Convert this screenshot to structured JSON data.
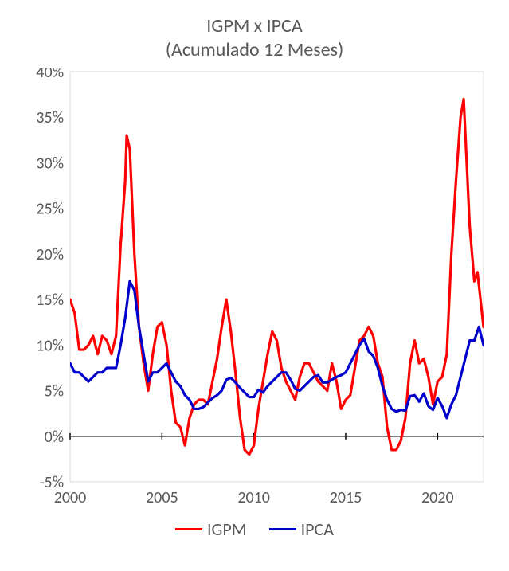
{
  "chart": {
    "type": "line",
    "title_line1": "IGPM x IPCA",
    "title_line2": "(Acumulado 12 Meses)",
    "title_fontsize": 24,
    "title_color": "#595959",
    "background_color": "#ffffff",
    "plot_border_color": "#d9d9d9",
    "plot_border_width": 1,
    "axis_text_color": "#595959",
    "axis_fontsize": 20,
    "x": {
      "min": 2000,
      "max": 2022.5,
      "ticks": [
        2000,
        2005,
        2010,
        2015,
        2020
      ],
      "tick_labels": [
        "2000",
        "2005",
        "2010",
        "2015",
        "2020"
      ],
      "tick_len": 8,
      "tick_color": "#000000",
      "tick_width": 1.5
    },
    "y": {
      "min": -5,
      "max": 40,
      "ticks": [
        -5,
        0,
        5,
        10,
        15,
        20,
        25,
        30,
        35,
        40
      ],
      "tick_labels": [
        "-5%",
        "0%",
        "5%",
        "10%",
        "15%",
        "20%",
        "25%",
        "30%",
        "35%",
        "40%"
      ],
      "zero_line_color": "#000000",
      "zero_line_width": 1.5
    },
    "legend": {
      "items": [
        "IGPM",
        "IPCA"
      ],
      "colors": [
        "#ff0000",
        "#0000cc"
      ],
      "fontsize": 22,
      "swatch_width": 34,
      "swatch_thickness": 3
    },
    "series": [
      {
        "name": "IGPM",
        "color": "#ff0000",
        "line_width": 3.2,
        "points": [
          [
            2000.0,
            15.0
          ],
          [
            2000.25,
            13.5
          ],
          [
            2000.5,
            9.5
          ],
          [
            2000.75,
            9.5
          ],
          [
            2001.0,
            10.0
          ],
          [
            2001.25,
            11.0
          ],
          [
            2001.5,
            9.0
          ],
          [
            2001.75,
            11.0
          ],
          [
            2002.0,
            10.5
          ],
          [
            2002.25,
            9.0
          ],
          [
            2002.5,
            11.0
          ],
          [
            2002.75,
            21.0
          ],
          [
            2003.0,
            28.0
          ],
          [
            2003.08,
            33.0
          ],
          [
            2003.25,
            31.5
          ],
          [
            2003.5,
            20.0
          ],
          [
            2003.75,
            12.0
          ],
          [
            2004.0,
            8.0
          ],
          [
            2004.25,
            5.0
          ],
          [
            2004.5,
            9.0
          ],
          [
            2004.75,
            12.0
          ],
          [
            2005.0,
            12.5
          ],
          [
            2005.25,
            10.0
          ],
          [
            2005.5,
            5.0
          ],
          [
            2005.75,
            1.5
          ],
          [
            2006.0,
            1.0
          ],
          [
            2006.25,
            -1.0
          ],
          [
            2006.5,
            2.0
          ],
          [
            2006.75,
            3.5
          ],
          [
            2007.0,
            4.0
          ],
          [
            2007.25,
            4.0
          ],
          [
            2007.5,
            3.5
          ],
          [
            2007.75,
            6.0
          ],
          [
            2008.0,
            8.5
          ],
          [
            2008.25,
            12.0
          ],
          [
            2008.5,
            15.0
          ],
          [
            2008.75,
            11.5
          ],
          [
            2009.0,
            7.0
          ],
          [
            2009.25,
            2.0
          ],
          [
            2009.5,
            -1.5
          ],
          [
            2009.75,
            -2.0
          ],
          [
            2010.0,
            -1.0
          ],
          [
            2010.25,
            3.0
          ],
          [
            2010.5,
            6.0
          ],
          [
            2010.75,
            9.0
          ],
          [
            2011.0,
            11.5
          ],
          [
            2011.25,
            10.5
          ],
          [
            2011.5,
            7.5
          ],
          [
            2011.75,
            6.0
          ],
          [
            2012.0,
            5.0
          ],
          [
            2012.25,
            4.0
          ],
          [
            2012.5,
            6.5
          ],
          [
            2012.75,
            8.0
          ],
          [
            2013.0,
            8.0
          ],
          [
            2013.25,
            7.0
          ],
          [
            2013.5,
            6.0
          ],
          [
            2013.75,
            5.5
          ],
          [
            2014.0,
            5.0
          ],
          [
            2014.25,
            8.0
          ],
          [
            2014.5,
            6.0
          ],
          [
            2014.75,
            3.0
          ],
          [
            2015.0,
            4.0
          ],
          [
            2015.25,
            4.5
          ],
          [
            2015.5,
            7.5
          ],
          [
            2015.75,
            10.5
          ],
          [
            2016.0,
            11.0
          ],
          [
            2016.25,
            12.0
          ],
          [
            2016.5,
            11.0
          ],
          [
            2016.75,
            8.0
          ],
          [
            2017.0,
            6.5
          ],
          [
            2017.25,
            1.0
          ],
          [
            2017.5,
            -1.5
          ],
          [
            2017.75,
            -1.5
          ],
          [
            2018.0,
            -0.5
          ],
          [
            2018.25,
            2.0
          ],
          [
            2018.5,
            8.0
          ],
          [
            2018.75,
            10.5
          ],
          [
            2019.0,
            8.0
          ],
          [
            2019.25,
            8.5
          ],
          [
            2019.5,
            6.5
          ],
          [
            2019.75,
            3.5
          ],
          [
            2020.0,
            6.0
          ],
          [
            2020.25,
            6.5
          ],
          [
            2020.5,
            9.0
          ],
          [
            2020.75,
            20.0
          ],
          [
            2021.0,
            28.0
          ],
          [
            2021.25,
            35.0
          ],
          [
            2021.42,
            37.0
          ],
          [
            2021.75,
            23.0
          ],
          [
            2022.0,
            17.0
          ],
          [
            2022.17,
            18.0
          ],
          [
            2022.5,
            12.0
          ]
        ]
      },
      {
        "name": "IPCA",
        "color": "#0000cc",
        "line_width": 3.2,
        "points": [
          [
            2000.0,
            8.0
          ],
          [
            2000.25,
            7.0
          ],
          [
            2000.5,
            7.0
          ],
          [
            2000.75,
            6.5
          ],
          [
            2001.0,
            6.0
          ],
          [
            2001.25,
            6.5
          ],
          [
            2001.5,
            7.0
          ],
          [
            2001.75,
            7.0
          ],
          [
            2002.0,
            7.5
          ],
          [
            2002.25,
            7.5
          ],
          [
            2002.5,
            7.5
          ],
          [
            2002.75,
            10.0
          ],
          [
            2003.0,
            13.0
          ],
          [
            2003.25,
            17.0
          ],
          [
            2003.5,
            16.0
          ],
          [
            2003.75,
            12.0
          ],
          [
            2004.0,
            9.0
          ],
          [
            2004.25,
            6.0
          ],
          [
            2004.5,
            7.0
          ],
          [
            2004.75,
            7.0
          ],
          [
            2005.0,
            7.5
          ],
          [
            2005.25,
            8.0
          ],
          [
            2005.5,
            7.0
          ],
          [
            2005.75,
            6.0
          ],
          [
            2006.0,
            5.5
          ],
          [
            2006.25,
            4.5
          ],
          [
            2006.5,
            4.0
          ],
          [
            2006.75,
            3.0
          ],
          [
            2007.0,
            3.0
          ],
          [
            2007.25,
            3.2
          ],
          [
            2007.5,
            3.7
          ],
          [
            2007.75,
            4.2
          ],
          [
            2008.0,
            4.5
          ],
          [
            2008.25,
            5.0
          ],
          [
            2008.5,
            6.2
          ],
          [
            2008.75,
            6.4
          ],
          [
            2009.0,
            5.9
          ],
          [
            2009.25,
            5.3
          ],
          [
            2009.5,
            4.8
          ],
          [
            2009.75,
            4.3
          ],
          [
            2010.0,
            4.3
          ],
          [
            2010.25,
            5.1
          ],
          [
            2010.5,
            4.8
          ],
          [
            2010.75,
            5.5
          ],
          [
            2011.0,
            6.0
          ],
          [
            2011.25,
            6.5
          ],
          [
            2011.5,
            7.0
          ],
          [
            2011.75,
            7.0
          ],
          [
            2012.0,
            6.2
          ],
          [
            2012.25,
            5.2
          ],
          [
            2012.5,
            5.0
          ],
          [
            2012.75,
            5.5
          ],
          [
            2013.0,
            6.0
          ],
          [
            2013.25,
            6.5
          ],
          [
            2013.5,
            6.7
          ],
          [
            2013.75,
            5.9
          ],
          [
            2014.0,
            5.9
          ],
          [
            2014.25,
            6.2
          ],
          [
            2014.5,
            6.5
          ],
          [
            2014.75,
            6.7
          ],
          [
            2015.0,
            7.0
          ],
          [
            2015.25,
            8.0
          ],
          [
            2015.5,
            9.0
          ],
          [
            2015.75,
            10.0
          ],
          [
            2016.0,
            10.7
          ],
          [
            2016.25,
            9.3
          ],
          [
            2016.5,
            8.8
          ],
          [
            2016.75,
            7.5
          ],
          [
            2017.0,
            5.5
          ],
          [
            2017.25,
            4.0
          ],
          [
            2017.5,
            3.0
          ],
          [
            2017.75,
            2.7
          ],
          [
            2018.0,
            2.9
          ],
          [
            2018.25,
            2.8
          ],
          [
            2018.5,
            4.4
          ],
          [
            2018.75,
            4.5
          ],
          [
            2019.0,
            3.8
          ],
          [
            2019.25,
            4.7
          ],
          [
            2019.5,
            3.3
          ],
          [
            2019.75,
            2.9
          ],
          [
            2020.0,
            4.2
          ],
          [
            2020.25,
            3.3
          ],
          [
            2020.5,
            2.0
          ],
          [
            2020.75,
            3.5
          ],
          [
            2021.0,
            4.5
          ],
          [
            2021.25,
            6.5
          ],
          [
            2021.5,
            8.5
          ],
          [
            2021.75,
            10.5
          ],
          [
            2022.0,
            10.5
          ],
          [
            2022.25,
            12.0
          ],
          [
            2022.5,
            10.0
          ]
        ]
      }
    ]
  }
}
